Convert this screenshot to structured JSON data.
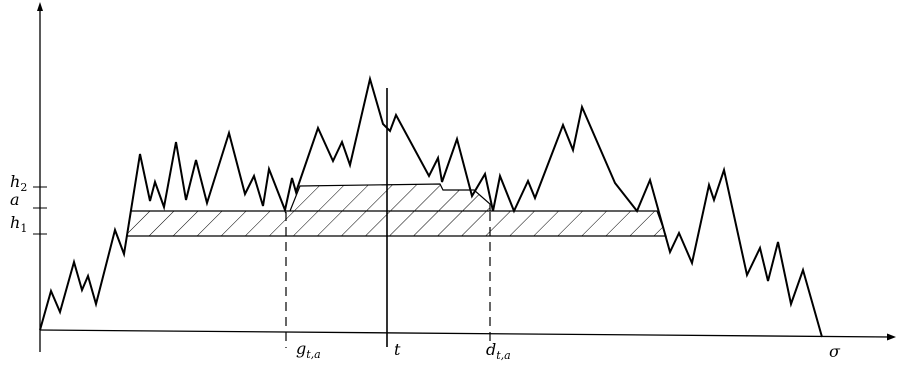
{
  "y_axis_labels": [
    {
      "id": "h2",
      "base": "h",
      "sub": "2"
    },
    {
      "id": "a",
      "base": "a",
      "sub": ""
    },
    {
      "id": "h1",
      "base": "h",
      "sub": "1"
    }
  ],
  "x_axis_labels": {
    "g": {
      "base": "g",
      "sub": "t,a"
    },
    "t": {
      "base": "t"
    },
    "d": {
      "base": "d",
      "sub": "t,a"
    },
    "sigma": {
      "base": "σ"
    }
  }
}
